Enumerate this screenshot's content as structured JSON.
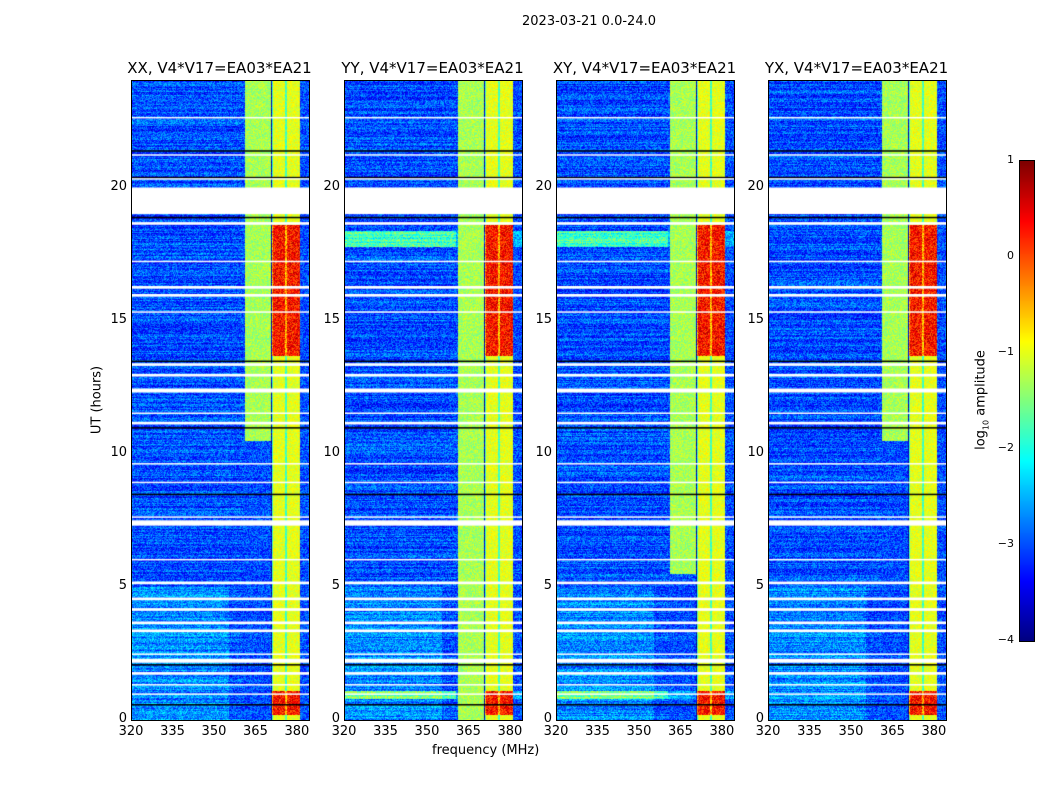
{
  "chart_data": {
    "type": "heatmap",
    "title": "2023-03-21 0.0-24.0",
    "xlabel": "frequency (MHz)",
    "ylabel": "UT (hours)",
    "xlim": [
      320,
      384
    ],
    "ylim": [
      0,
      24
    ],
    "xticks": [
      "320",
      "335",
      "350",
      "365",
      "380"
    ],
    "yticks": [
      "0",
      "5",
      "10",
      "15",
      "20"
    ],
    "panels": [
      {
        "title": "XX, V4*V17=EA03*EA21"
      },
      {
        "title": "YY, V4*V17=EA03*EA21"
      },
      {
        "title": "XY, V4*V17=EA03*EA21"
      },
      {
        "title": "YX, V4*V17=EA03*EA21"
      }
    ],
    "colorbar": {
      "label_main": "log",
      "label_sub": "10",
      "label_rest": " amplitude",
      "range": [
        -4,
        1
      ],
      "ticks": [
        "1",
        "0",
        "−1",
        "−2",
        "−3",
        "−4"
      ],
      "colormap": "jet"
    },
    "rfi_bands_mhz": [
      [
        360.5,
        370
      ],
      [
        370.5,
        375.5
      ],
      [
        375.5,
        380.5
      ]
    ],
    "flagged_hours": [
      [
        19.0,
        20.0
      ],
      [
        0.95,
        1.0
      ],
      [
        1.3,
        1.35
      ],
      [
        1.7,
        1.8
      ],
      [
        2.15,
        2.3
      ],
      [
        2.45,
        2.5
      ],
      [
        3.3,
        3.4
      ],
      [
        3.6,
        3.7
      ],
      [
        4.1,
        4.2
      ],
      [
        4.5,
        4.6
      ],
      [
        5.1,
        5.2
      ],
      [
        6.0,
        6.05
      ],
      [
        7.3,
        7.5
      ],
      [
        7.6,
        7.65
      ],
      [
        8.9,
        8.95
      ],
      [
        9.6,
        9.65
      ],
      [
        11.1,
        11.2
      ],
      [
        11.5,
        11.55
      ],
      [
        12.3,
        12.45
      ],
      [
        12.9,
        13.0
      ],
      [
        13.3,
        13.4
      ],
      [
        15.3,
        15.35
      ],
      [
        15.9,
        16.0
      ],
      [
        16.2,
        16.3
      ],
      [
        17.2,
        17.25
      ],
      [
        18.6,
        18.7
      ],
      [
        20.3,
        20.35
      ],
      [
        21.2,
        21.25
      ],
      [
        22.6,
        22.65
      ]
    ],
    "dark_lines_hours": [
      0.6,
      2.1,
      8.5,
      11.0,
      13.5,
      18.9,
      20.4,
      21.4
    ]
  }
}
